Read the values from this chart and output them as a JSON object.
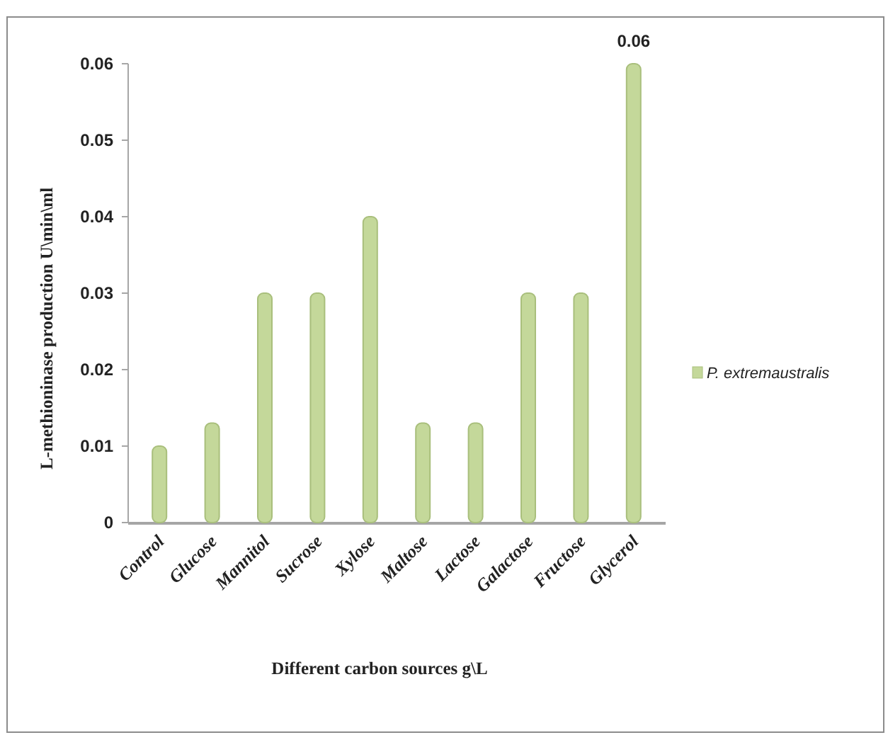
{
  "chart_data": {
    "type": "bar",
    "xlabel": "Different carbon sources g\\L",
    "ylabel": "L-methioninase production U\\min\\ml",
    "categories": [
      "Control",
      "Glucose",
      "Mannitol",
      "Sucrose",
      "Xylose",
      "Maltose",
      "Lactose",
      "Galactose",
      "Fructose",
      "Glycerol"
    ],
    "series": [
      {
        "name": "P. extremaustralis",
        "color": "#c4d89a",
        "values": [
          0.01,
          0.013,
          0.03,
          0.03,
          0.04,
          0.013,
          0.013,
          0.03,
          0.03,
          0.06
        ],
        "value_labels": [
          null,
          null,
          null,
          null,
          null,
          null,
          null,
          null,
          null,
          "0.06"
        ]
      }
    ],
    "ylim": [
      0,
      0.06
    ],
    "yticks": [
      0,
      0.01,
      0.02,
      0.03,
      0.04,
      0.05,
      0.06
    ],
    "legend": "right"
  }
}
